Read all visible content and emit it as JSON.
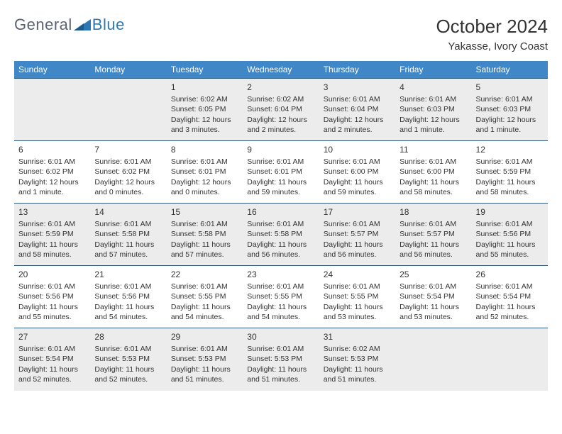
{
  "brand": {
    "part1": "General",
    "part2": "Blue"
  },
  "header": {
    "title": "October 2024",
    "location": "Yakasse, Ivory Coast"
  },
  "colors": {
    "header_bg": "#3f87c6",
    "header_text": "#ffffff",
    "cell_border": "#2d5a80",
    "shaded_bg": "#ececec",
    "logo_gray": "#5a6472",
    "logo_blue": "#2d79b6"
  },
  "weekdays": [
    "Sunday",
    "Monday",
    "Tuesday",
    "Wednesday",
    "Thursday",
    "Friday",
    "Saturday"
  ],
  "weeks": [
    [
      {
        "empty": true
      },
      {
        "empty": true
      },
      {
        "day": "1",
        "sunrise": "Sunrise: 6:02 AM",
        "sunset": "Sunset: 6:05 PM",
        "daylight": "Daylight: 12 hours and 3 minutes."
      },
      {
        "day": "2",
        "sunrise": "Sunrise: 6:02 AM",
        "sunset": "Sunset: 6:04 PM",
        "daylight": "Daylight: 12 hours and 2 minutes."
      },
      {
        "day": "3",
        "sunrise": "Sunrise: 6:01 AM",
        "sunset": "Sunset: 6:04 PM",
        "daylight": "Daylight: 12 hours and 2 minutes."
      },
      {
        "day": "4",
        "sunrise": "Sunrise: 6:01 AM",
        "sunset": "Sunset: 6:03 PM",
        "daylight": "Daylight: 12 hours and 1 minute."
      },
      {
        "day": "5",
        "sunrise": "Sunrise: 6:01 AM",
        "sunset": "Sunset: 6:03 PM",
        "daylight": "Daylight: 12 hours and 1 minute."
      }
    ],
    [
      {
        "day": "6",
        "sunrise": "Sunrise: 6:01 AM",
        "sunset": "Sunset: 6:02 PM",
        "daylight": "Daylight: 12 hours and 1 minute."
      },
      {
        "day": "7",
        "sunrise": "Sunrise: 6:01 AM",
        "sunset": "Sunset: 6:02 PM",
        "daylight": "Daylight: 12 hours and 0 minutes."
      },
      {
        "day": "8",
        "sunrise": "Sunrise: 6:01 AM",
        "sunset": "Sunset: 6:01 PM",
        "daylight": "Daylight: 12 hours and 0 minutes."
      },
      {
        "day": "9",
        "sunrise": "Sunrise: 6:01 AM",
        "sunset": "Sunset: 6:01 PM",
        "daylight": "Daylight: 11 hours and 59 minutes."
      },
      {
        "day": "10",
        "sunrise": "Sunrise: 6:01 AM",
        "sunset": "Sunset: 6:00 PM",
        "daylight": "Daylight: 11 hours and 59 minutes."
      },
      {
        "day": "11",
        "sunrise": "Sunrise: 6:01 AM",
        "sunset": "Sunset: 6:00 PM",
        "daylight": "Daylight: 11 hours and 58 minutes."
      },
      {
        "day": "12",
        "sunrise": "Sunrise: 6:01 AM",
        "sunset": "Sunset: 5:59 PM",
        "daylight": "Daylight: 11 hours and 58 minutes."
      }
    ],
    [
      {
        "day": "13",
        "sunrise": "Sunrise: 6:01 AM",
        "sunset": "Sunset: 5:59 PM",
        "daylight": "Daylight: 11 hours and 58 minutes."
      },
      {
        "day": "14",
        "sunrise": "Sunrise: 6:01 AM",
        "sunset": "Sunset: 5:58 PM",
        "daylight": "Daylight: 11 hours and 57 minutes."
      },
      {
        "day": "15",
        "sunrise": "Sunrise: 6:01 AM",
        "sunset": "Sunset: 5:58 PM",
        "daylight": "Daylight: 11 hours and 57 minutes."
      },
      {
        "day": "16",
        "sunrise": "Sunrise: 6:01 AM",
        "sunset": "Sunset: 5:58 PM",
        "daylight": "Daylight: 11 hours and 56 minutes."
      },
      {
        "day": "17",
        "sunrise": "Sunrise: 6:01 AM",
        "sunset": "Sunset: 5:57 PM",
        "daylight": "Daylight: 11 hours and 56 minutes."
      },
      {
        "day": "18",
        "sunrise": "Sunrise: 6:01 AM",
        "sunset": "Sunset: 5:57 PM",
        "daylight": "Daylight: 11 hours and 56 minutes."
      },
      {
        "day": "19",
        "sunrise": "Sunrise: 6:01 AM",
        "sunset": "Sunset: 5:56 PM",
        "daylight": "Daylight: 11 hours and 55 minutes."
      }
    ],
    [
      {
        "day": "20",
        "sunrise": "Sunrise: 6:01 AM",
        "sunset": "Sunset: 5:56 PM",
        "daylight": "Daylight: 11 hours and 55 minutes."
      },
      {
        "day": "21",
        "sunrise": "Sunrise: 6:01 AM",
        "sunset": "Sunset: 5:56 PM",
        "daylight": "Daylight: 11 hours and 54 minutes."
      },
      {
        "day": "22",
        "sunrise": "Sunrise: 6:01 AM",
        "sunset": "Sunset: 5:55 PM",
        "daylight": "Daylight: 11 hours and 54 minutes."
      },
      {
        "day": "23",
        "sunrise": "Sunrise: 6:01 AM",
        "sunset": "Sunset: 5:55 PM",
        "daylight": "Daylight: 11 hours and 54 minutes."
      },
      {
        "day": "24",
        "sunrise": "Sunrise: 6:01 AM",
        "sunset": "Sunset: 5:55 PM",
        "daylight": "Daylight: 11 hours and 53 minutes."
      },
      {
        "day": "25",
        "sunrise": "Sunrise: 6:01 AM",
        "sunset": "Sunset: 5:54 PM",
        "daylight": "Daylight: 11 hours and 53 minutes."
      },
      {
        "day": "26",
        "sunrise": "Sunrise: 6:01 AM",
        "sunset": "Sunset: 5:54 PM",
        "daylight": "Daylight: 11 hours and 52 minutes."
      }
    ],
    [
      {
        "day": "27",
        "sunrise": "Sunrise: 6:01 AM",
        "sunset": "Sunset: 5:54 PM",
        "daylight": "Daylight: 11 hours and 52 minutes."
      },
      {
        "day": "28",
        "sunrise": "Sunrise: 6:01 AM",
        "sunset": "Sunset: 5:53 PM",
        "daylight": "Daylight: 11 hours and 52 minutes."
      },
      {
        "day": "29",
        "sunrise": "Sunrise: 6:01 AM",
        "sunset": "Sunset: 5:53 PM",
        "daylight": "Daylight: 11 hours and 51 minutes."
      },
      {
        "day": "30",
        "sunrise": "Sunrise: 6:01 AM",
        "sunset": "Sunset: 5:53 PM",
        "daylight": "Daylight: 11 hours and 51 minutes."
      },
      {
        "day": "31",
        "sunrise": "Sunrise: 6:02 AM",
        "sunset": "Sunset: 5:53 PM",
        "daylight": "Daylight: 11 hours and 51 minutes."
      },
      {
        "empty": true
      },
      {
        "empty": true
      }
    ]
  ]
}
